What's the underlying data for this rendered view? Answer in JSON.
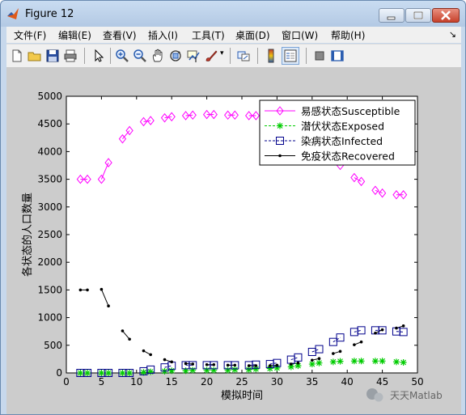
{
  "window": {
    "title": "Figure 12"
  },
  "menu": [
    "文件(F)",
    "编辑(E)",
    "查看(V)",
    "插入(I)",
    "工具(T)",
    "桌面(D)",
    "窗口(W)",
    "帮助(H)"
  ],
  "toolbar": [
    "new-file-icon",
    "open-folder-icon",
    "save-icon",
    "print-icon",
    "pointer-icon",
    "zoom-in-icon",
    "zoom-out-icon",
    "pan-hand-icon",
    "rotate-3d-icon",
    "data-cursor-icon",
    "brush-icon",
    "link-plot-icon",
    "colorbar-icon",
    "legend-icon",
    "hide-plot-tools-icon",
    "show-plot-tools-icon"
  ],
  "watermark": "天天Matlab",
  "chart_data": {
    "type": "line",
    "xlabel": "模拟时间",
    "ylabel": "各状态的人口数量",
    "xlim": [
      0,
      50
    ],
    "ylim": [
      0,
      5000
    ],
    "xticks": [
      0,
      5,
      10,
      15,
      20,
      25,
      30,
      35,
      40,
      45,
      50
    ],
    "yticks": [
      0,
      500,
      1000,
      1500,
      2000,
      2500,
      3000,
      3500,
      4000,
      4500,
      5000
    ],
    "legend_position": "top-right",
    "series": [
      {
        "name": "易感状态Susceptible",
        "color": "#ff00ff",
        "style": "solid",
        "marker": "diamond",
        "segments": [
          [
            [
              2,
              3500
            ],
            [
              3,
              3500
            ]
          ],
          [
            [
              5,
              3500
            ],
            [
              6,
              3800
            ]
          ],
          [
            [
              8,
              4230
            ],
            [
              9,
              4380
            ]
          ],
          [
            [
              11,
              4540
            ],
            [
              12,
              4560
            ]
          ],
          [
            [
              14,
              4610
            ],
            [
              15,
              4630
            ]
          ],
          [
            [
              17,
              4650
            ],
            [
              18,
              4660
            ]
          ],
          [
            [
              20,
              4670
            ],
            [
              21,
              4670
            ]
          ],
          [
            [
              23,
              4660
            ],
            [
              24,
              4660
            ]
          ],
          [
            [
              26,
              4650
            ],
            [
              27,
              4650
            ]
          ],
          [
            [
              29,
              4630
            ],
            [
              30,
              4570
            ]
          ],
          [
            [
              32,
              4430
            ],
            [
              33,
              4350
            ]
          ],
          [
            [
              35,
              4140
            ],
            [
              36,
              4050
            ]
          ],
          [
            [
              38,
              3870
            ],
            [
              39,
              3750
            ]
          ],
          [
            [
              41,
              3530
            ],
            [
              42,
              3460
            ]
          ],
          [
            [
              44,
              3300
            ],
            [
              45,
              3250
            ]
          ],
          [
            [
              47,
              3220
            ],
            [
              48,
              3220
            ]
          ]
        ]
      },
      {
        "name": "潜伏状态Exposed",
        "color": "#00cc00",
        "style": "dashed",
        "marker": "asterisk",
        "segments": [
          [
            [
              2,
              0
            ],
            [
              3,
              0
            ]
          ],
          [
            [
              5,
              0
            ],
            [
              6,
              0
            ]
          ],
          [
            [
              8,
              0
            ],
            [
              9,
              0
            ]
          ],
          [
            [
              11,
              10
            ],
            [
              12,
              20
            ]
          ],
          [
            [
              14,
              30
            ],
            [
              15,
              40
            ]
          ],
          [
            [
              17,
              40
            ],
            [
              18,
              50
            ]
          ],
          [
            [
              20,
              50
            ],
            [
              21,
              50
            ]
          ],
          [
            [
              23,
              50
            ],
            [
              24,
              60
            ]
          ],
          [
            [
              26,
              60
            ],
            [
              27,
              70
            ]
          ],
          [
            [
              29,
              80
            ],
            [
              30,
              90
            ]
          ],
          [
            [
              32,
              110
            ],
            [
              33,
              130
            ]
          ],
          [
            [
              35,
              160
            ],
            [
              36,
              180
            ]
          ],
          [
            [
              38,
              200
            ],
            [
              39,
              210
            ]
          ],
          [
            [
              41,
              215
            ],
            [
              42,
              215
            ]
          ],
          [
            [
              44,
              215
            ],
            [
              45,
              215
            ]
          ],
          [
            [
              47,
              200
            ],
            [
              48,
              190
            ]
          ]
        ]
      },
      {
        "name": "染病状态Infected",
        "color": "#00008b",
        "style": "dashed",
        "marker": "square",
        "segments": [
          [
            [
              2,
              0
            ],
            [
              3,
              0
            ]
          ],
          [
            [
              5,
              0
            ],
            [
              6,
              0
            ]
          ],
          [
            [
              8,
              0
            ],
            [
              9,
              0
            ]
          ],
          [
            [
              11,
              30
            ],
            [
              12,
              60
            ]
          ],
          [
            [
              14,
              100
            ],
            [
              15,
              130
            ]
          ],
          [
            [
              17,
              140
            ],
            [
              18,
              140
            ]
          ],
          [
            [
              20,
              140
            ],
            [
              21,
              140
            ]
          ],
          [
            [
              23,
              140
            ],
            [
              24,
              140
            ]
          ],
          [
            [
              26,
              140
            ],
            [
              27,
              150
            ]
          ],
          [
            [
              29,
              160
            ],
            [
              30,
              180
            ]
          ],
          [
            [
              32,
              240
            ],
            [
              33,
              280
            ]
          ],
          [
            [
              35,
              380
            ],
            [
              36,
              430
            ]
          ],
          [
            [
              38,
              560
            ],
            [
              39,
              640
            ]
          ],
          [
            [
              41,
              740
            ],
            [
              42,
              770
            ]
          ],
          [
            [
              44,
              770
            ],
            [
              45,
              770
            ]
          ],
          [
            [
              47,
              750
            ],
            [
              48,
              740
            ]
          ]
        ]
      },
      {
        "name": "免疫状态Recovered",
        "color": "#000000",
        "style": "solid",
        "marker": "point",
        "segments": [
          [
            [
              2,
              1500
            ],
            [
              3,
              1500
            ]
          ],
          [
            [
              5,
              1510
            ],
            [
              6,
              1210
            ]
          ],
          [
            [
              8,
              760
            ],
            [
              9,
              610
            ]
          ],
          [
            [
              11,
              400
            ],
            [
              12,
              330
            ]
          ],
          [
            [
              14,
              240
            ],
            [
              15,
              200
            ]
          ],
          [
            [
              17,
              170
            ],
            [
              18,
              160
            ]
          ],
          [
            [
              20,
              150
            ],
            [
              21,
              150
            ]
          ],
          [
            [
              23,
              140
            ],
            [
              24,
              140
            ]
          ],
          [
            [
              26,
              130
            ],
            [
              27,
              130
            ]
          ],
          [
            [
              29,
              130
            ],
            [
              30,
              140
            ]
          ],
          [
            [
              32,
              160
            ],
            [
              33,
              180
            ]
          ],
          [
            [
              35,
              230
            ],
            [
              36,
              260
            ]
          ],
          [
            [
              38,
              350
            ],
            [
              39,
              390
            ]
          ],
          [
            [
              41,
              510
            ],
            [
              42,
              560
            ]
          ],
          [
            [
              44,
              720
            ],
            [
              45,
              780
            ]
          ],
          [
            [
              47,
              810
            ],
            [
              48,
              850
            ]
          ]
        ]
      }
    ]
  }
}
